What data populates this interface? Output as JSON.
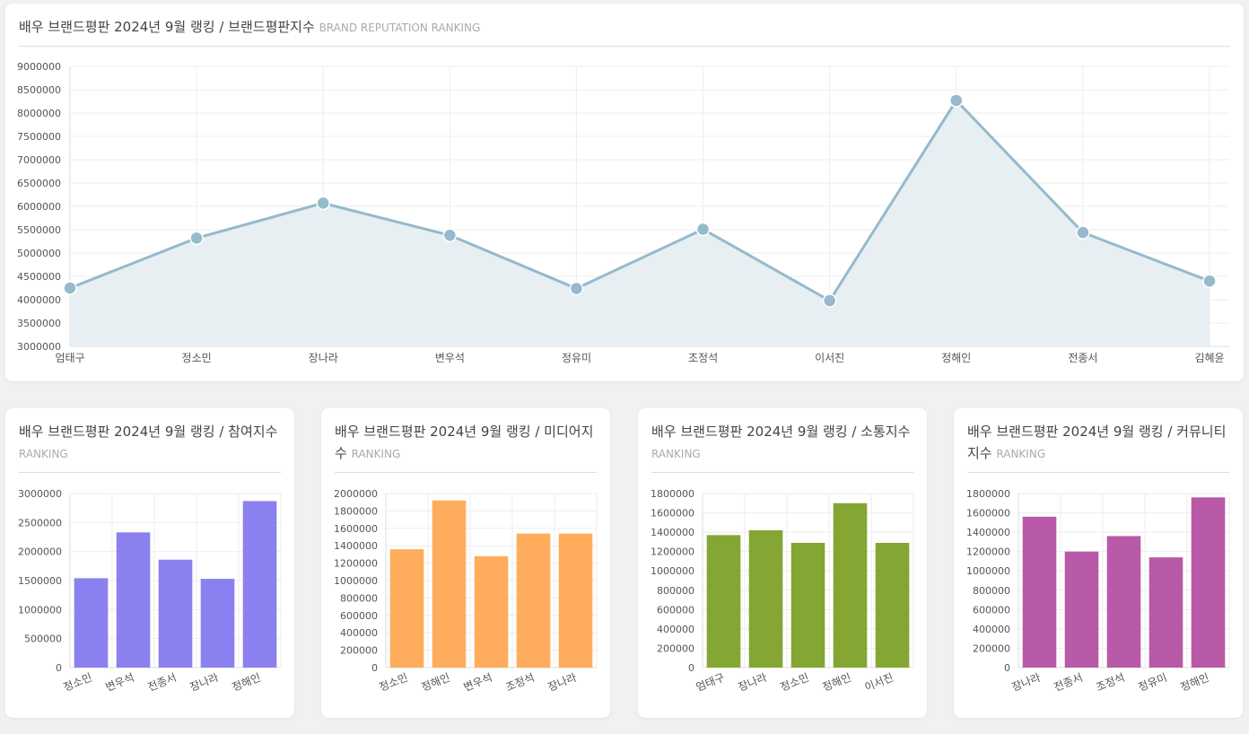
{
  "charts": [
    {
      "title": "배우 브랜드평판 2024년 9월 랭킹 / 브랜드평판지수",
      "subtitle": "BRAND REPUTATION RANKING"
    },
    {
      "title": "배우 브랜드평판 2024년 9월 랭킹 / 참여지수",
      "subtitle": "RANKING"
    },
    {
      "title": "배우 브랜드평판 2024년 9월 랭킹 / 미디어지수",
      "subtitle": "RANKING"
    },
    {
      "title": "배우 브랜드평판 2024년 9월 랭킹 / 소통지수",
      "subtitle": "RANKING"
    },
    {
      "title": "배우 브랜드평판 2024년 9월 랭킹 / 커뮤니티지수",
      "subtitle": "RANKING"
    }
  ],
  "chart_data": [
    {
      "type": "area",
      "categories": [
        "엄태구",
        "정소민",
        "장나라",
        "변우석",
        "정유미",
        "조정석",
        "이서진",
        "정해인",
        "전종서",
        "김혜윤"
      ],
      "values": [
        4250000,
        5320000,
        6070000,
        5380000,
        4240000,
        5510000,
        3980000,
        8270000,
        5440000,
        4400000
      ],
      "title": "배우 브랜드평판 2024년 9월 랭킹 / 브랜드평판지수",
      "subtitle": "BRAND REPUTATION RANKING",
      "ylim": [
        3000000,
        9000000
      ],
      "ystep": 500000,
      "color": "#96b9cc",
      "fill": "#e7eff3",
      "grid": true
    },
    {
      "type": "bar",
      "categories": [
        "정소민",
        "변우석",
        "전종서",
        "장나라",
        "정해인"
      ],
      "values": [
        1540000,
        2330000,
        1860000,
        1530000,
        2870000
      ],
      "title": "배우 브랜드평판 2024년 9월 랭킹 / 참여지수",
      "subtitle": "RANKING",
      "ylim": [
        0,
        3000000
      ],
      "ystep": 500000,
      "color": "#8b80f0",
      "grid": true
    },
    {
      "type": "bar",
      "categories": [
        "정소민",
        "정해인",
        "변우석",
        "조정석",
        "장나라"
      ],
      "values": [
        1360000,
        1920000,
        1280000,
        1540000,
        1540000
      ],
      "title": "배우 브랜드평판 2024년 9월 랭킹 / 미디어지수",
      "subtitle": "RANKING",
      "ylim": [
        0,
        2000000
      ],
      "ystep": 200000,
      "color": "#ffad5c",
      "grid": true
    },
    {
      "type": "bar",
      "categories": [
        "엄태구",
        "장나라",
        "정소민",
        "정해인",
        "이서진"
      ],
      "values": [
        1370000,
        1420000,
        1290000,
        1700000,
        1290000
      ],
      "title": "배우 브랜드평판 2024년 9월 랭킹 / 소통지수",
      "subtitle": "RANKING",
      "ylim": [
        0,
        1800000
      ],
      "ystep": 200000,
      "color": "#84a632",
      "grid": true
    },
    {
      "type": "bar",
      "categories": [
        "장나라",
        "전종서",
        "조정석",
        "정유미",
        "정해인"
      ],
      "values": [
        1560000,
        1200000,
        1360000,
        1140000,
        1760000
      ],
      "title": "배우 브랜드평판 2024년 9월 랭킹 / 커뮤니티지수",
      "subtitle": "RANKING",
      "ylim": [
        0,
        1800000
      ],
      "ystep": 200000,
      "color": "#b85aa7",
      "grid": true
    }
  ]
}
